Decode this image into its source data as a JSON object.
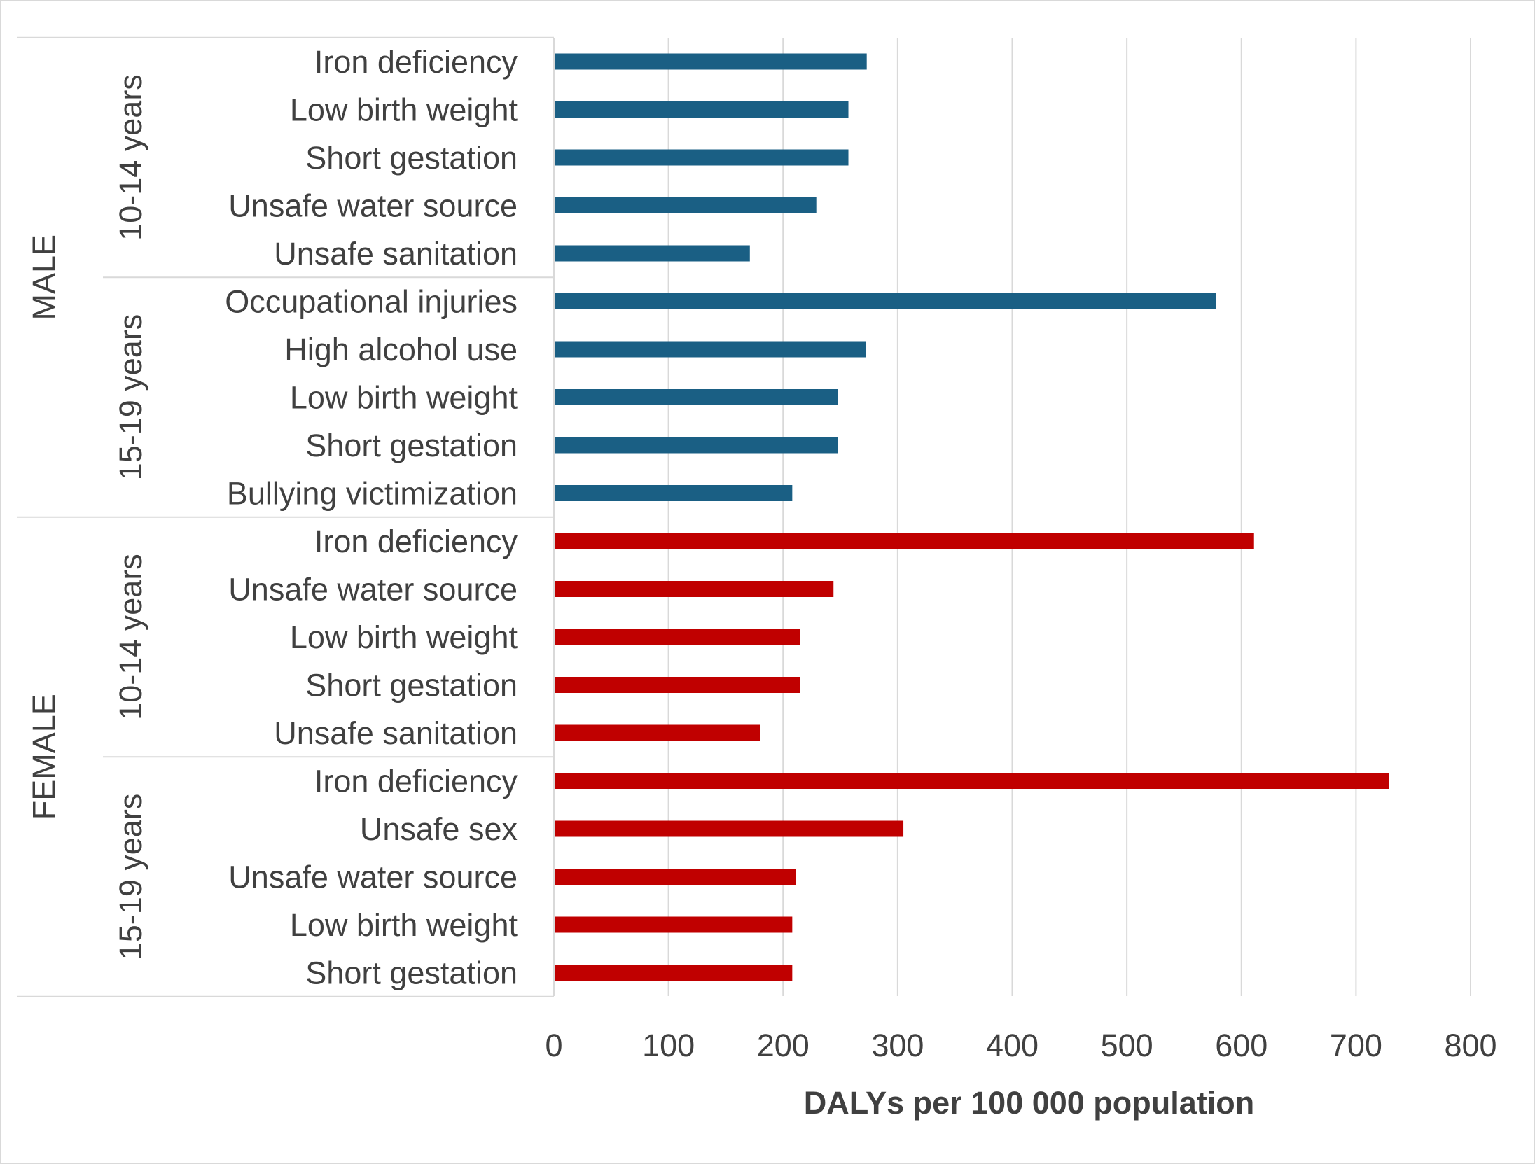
{
  "chart_data": {
    "type": "bar",
    "orientation": "horizontal",
    "title": "",
    "xlabel": "DALYs per 100 000 population",
    "ylabel": "",
    "xlim": [
      0,
      800
    ],
    "xticks": [
      "0",
      "100",
      "200",
      "300",
      "400",
      "500",
      "600",
      "700",
      "800"
    ],
    "grid": "vertical",
    "legend": "none",
    "colors": {
      "male": "#1a5f84",
      "female": "#c00000"
    },
    "groups": [
      {
        "sex": "MALE",
        "color": "#1a5f84",
        "age_groups": [
          {
            "age": "10-14 years",
            "categories": [
              "Iron deficiency",
              "Low birth weight",
              "Short gestation",
              "Unsafe water source",
              "Unsafe sanitation"
            ],
            "values": [
              273,
              257,
              257,
              229,
              171
            ]
          },
          {
            "age": "15-19 years",
            "categories": [
              "Occupational injuries",
              "High alcohol use",
              "Low birth weight",
              "Short gestation",
              "Bullying victimization"
            ],
            "values": [
              578,
              272,
              248,
              248,
              208
            ]
          }
        ]
      },
      {
        "sex": "FEMALE",
        "color": "#c00000",
        "age_groups": [
          {
            "age": "10-14 years",
            "categories": [
              "Iron deficiency",
              "Unsafe water source",
              "Low birth weight",
              "Short gestation",
              "Unsafe sanitation"
            ],
            "values": [
              611,
              244,
              215,
              215,
              180
            ]
          },
          {
            "age": "15-19 years",
            "categories": [
              "Iron deficiency",
              "Unsafe sex",
              "Unsafe water source",
              "Low birth weight",
              "Short gestation"
            ],
            "values": [
              729,
              305,
              211,
              208,
              208
            ]
          }
        ]
      }
    ]
  }
}
